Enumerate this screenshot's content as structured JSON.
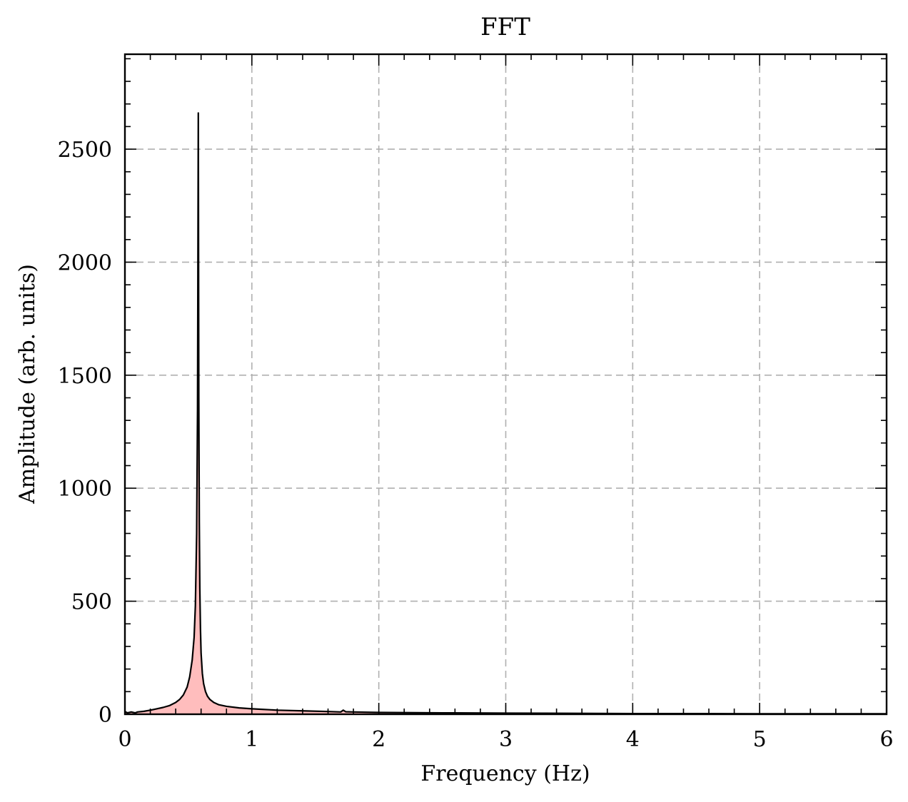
{
  "chart_data": {
    "type": "area",
    "title": "FFT",
    "xlabel": "Frequency (Hz)",
    "ylabel": "Amplitude (arb. units)",
    "xlim": [
      0,
      6
    ],
    "ylim": [
      0,
      2920
    ],
    "xticks": [
      0,
      1,
      2,
      3,
      4,
      5,
      6
    ],
    "xtick_labels": [
      "0",
      "1",
      "2",
      "3",
      "4",
      "5",
      "6"
    ],
    "yticks": [
      0,
      500,
      1000,
      1500,
      2000,
      2500
    ],
    "ytick_labels": [
      "0",
      "500",
      "1000",
      "1500",
      "2000",
      "2500"
    ],
    "x_minor_step": 0.2,
    "y_minor_step": 100,
    "grid": true,
    "fill_color": "#ffbdbd",
    "line_color": "#000000",
    "series": [
      {
        "x": [
          0.0,
          0.02,
          0.05,
          0.08,
          0.1,
          0.15,
          0.2,
          0.25,
          0.3,
          0.35,
          0.4,
          0.43,
          0.46,
          0.49,
          0.51,
          0.53,
          0.545,
          0.555,
          0.565,
          0.572,
          0.578,
          0.582,
          0.586,
          0.59,
          0.595,
          0.6,
          0.61,
          0.62,
          0.635,
          0.65,
          0.67,
          0.7,
          0.74,
          0.8,
          0.9,
          1.0,
          1.2,
          1.4,
          1.6,
          1.7,
          1.72,
          1.74,
          1.8,
          2.0,
          2.5,
          3.0,
          3.5,
          4.0,
          4.5,
          5.0,
          5.5,
          6.0
        ],
        "y": [
          12,
          6,
          10,
          6,
          10,
          13,
          18,
          24,
          30,
          38,
          52,
          65,
          85,
          120,
          165,
          240,
          340,
          480,
          800,
          1350,
          2660,
          1400,
          850,
          560,
          380,
          270,
          180,
          135,
          100,
          80,
          65,
          52,
          42,
          35,
          28,
          24,
          18,
          15,
          12,
          10,
          18,
          11,
          10,
          8,
          6,
          5,
          4,
          3,
          3,
          2,
          2,
          2
        ]
      }
    ]
  }
}
